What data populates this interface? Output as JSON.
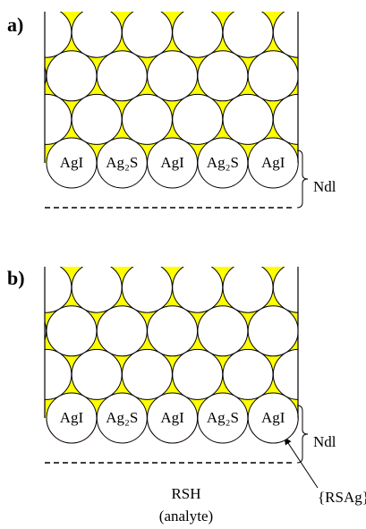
{
  "panel_a": {
    "label": "a)",
    "particles": [
      "AgI",
      "Ag₂S",
      "AgI",
      "Ag₂S",
      "AgI"
    ],
    "layer": "Ndl"
  },
  "panel_b": {
    "label": "b)",
    "particles": [
      "AgI",
      "Ag₂S",
      "AgI",
      "Ag₂S",
      "AgI"
    ],
    "layer": "Ndl",
    "analyte": "RSH",
    "analyte_note": "(analyte)",
    "adsorbate": "{RSAg}"
  }
}
